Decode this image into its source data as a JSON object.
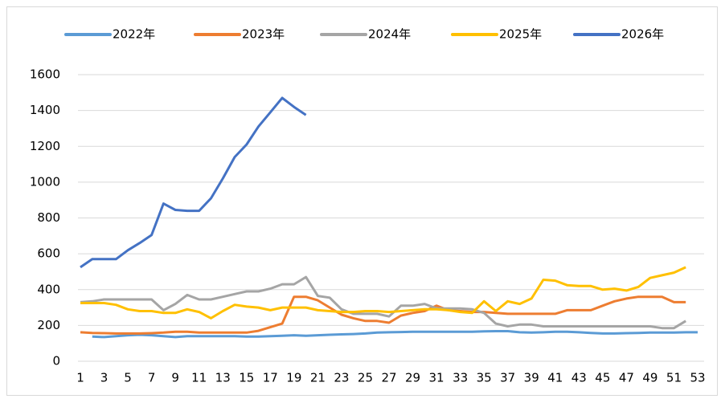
{
  "chart_data": {
    "type": "line",
    "x": [
      1,
      2,
      3,
      4,
      5,
      6,
      7,
      8,
      9,
      10,
      11,
      12,
      13,
      14,
      15,
      16,
      17,
      18,
      19,
      20,
      21,
      22,
      23,
      24,
      25,
      26,
      27,
      28,
      29,
      30,
      31,
      32,
      33,
      34,
      35,
      36,
      37,
      38,
      39,
      40,
      41,
      42,
      43,
      44,
      45,
      46,
      47,
      48,
      49,
      50,
      51,
      52,
      53
    ],
    "xlim": [
      1,
      53
    ],
    "xticks": [
      1,
      3,
      5,
      7,
      9,
      11,
      13,
      15,
      17,
      19,
      21,
      23,
      25,
      27,
      29,
      31,
      33,
      35,
      37,
      39,
      41,
      43,
      45,
      47,
      49,
      51,
      53
    ],
    "ylim": [
      0,
      1600
    ],
    "yticks": [
      0,
      200,
      400,
      600,
      800,
      1000,
      1200,
      1400,
      1600
    ],
    "grid": true,
    "legend": "top",
    "series": [
      {
        "name": "2022年",
        "color": "#5b9bd5",
        "values": [
          null,
          138,
          135,
          140,
          145,
          148,
          145,
          140,
          135,
          140,
          140,
          140,
          140,
          140,
          138,
          138,
          140,
          142,
          145,
          142,
          145,
          148,
          150,
          152,
          155,
          160,
          162,
          163,
          165,
          165,
          165,
          165,
          165,
          165,
          167,
          168,
          168,
          162,
          160,
          162,
          165,
          165,
          162,
          158,
          155,
          155,
          157,
          158,
          160,
          160,
          160,
          162,
          162
        ]
      },
      {
        "name": "2023年",
        "color": "#ed7d31",
        "values": [
          162,
          158,
          157,
          155,
          155,
          155,
          157,
          160,
          165,
          165,
          160,
          160,
          160,
          160,
          160,
          170,
          190,
          210,
          360,
          360,
          340,
          300,
          260,
          240,
          225,
          225,
          215,
          255,
          270,
          280,
          310,
          285,
          280,
          275,
          275,
          270,
          265,
          265,
          265,
          265,
          265,
          285,
          285,
          285,
          310,
          335,
          350,
          360,
          360,
          360,
          330,
          330,
          null
        ]
      },
      {
        "name": "2024年",
        "color": "#a5a5a5",
        "values": [
          330,
          335,
          345,
          345,
          345,
          345,
          345,
          285,
          320,
          370,
          345,
          345,
          360,
          375,
          390,
          390,
          405,
          430,
          430,
          470,
          365,
          355,
          290,
          265,
          265,
          265,
          250,
          310,
          310,
          320,
          295,
          295,
          295,
          290,
          270,
          210,
          195,
          205,
          205,
          195,
          195,
          195,
          195,
          195,
          195,
          195,
          195,
          195,
          195,
          185,
          185,
          225,
          null
        ]
      },
      {
        "name": "2025年",
        "color": "#ffc000",
        "values": [
          325,
          325,
          325,
          315,
          290,
          280,
          280,
          270,
          270,
          290,
          275,
          240,
          280,
          315,
          305,
          300,
          285,
          300,
          300,
          300,
          285,
          280,
          275,
          275,
          280,
          280,
          275,
          280,
          285,
          290,
          290,
          285,
          275,
          270,
          335,
          280,
          335,
          320,
          350,
          455,
          450,
          425,
          420,
          420,
          400,
          405,
          395,
          415,
          465,
          480,
          495,
          525,
          null
        ]
      },
      {
        "name": "2026年",
        "color": "#4472c4",
        "values": [
          525,
          570,
          570,
          570,
          620,
          660,
          705,
          880,
          845,
          840,
          840,
          910,
          1020,
          1140,
          1210,
          1310,
          1390,
          1470,
          1420,
          1375,
          null,
          null,
          null,
          null,
          null,
          null,
          null,
          null,
          null,
          null,
          null,
          null,
          null,
          null,
          null,
          null,
          null,
          null,
          null,
          null,
          null,
          null,
          null,
          null,
          null,
          null,
          null,
          null,
          null,
          null,
          null,
          null,
          null
        ]
      }
    ]
  }
}
